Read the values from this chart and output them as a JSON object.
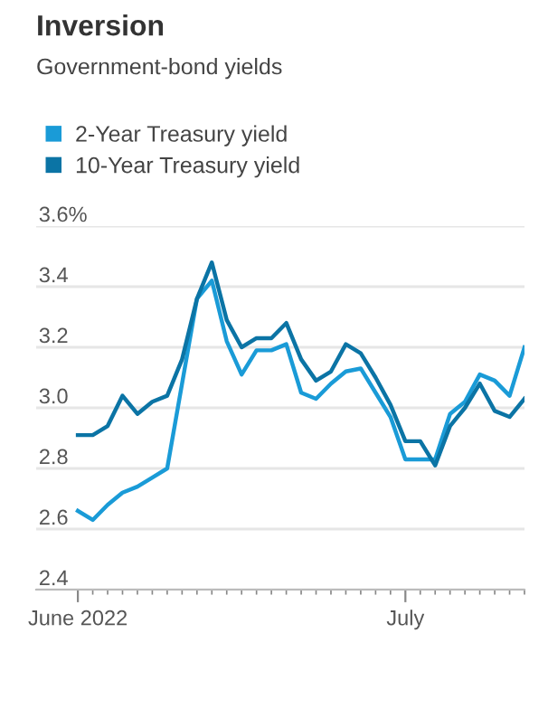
{
  "chart_data": {
    "type": "line",
    "title": "Inversion",
    "subtitle": "Government-bond yields",
    "categories": [
      "June 2022",
      null,
      null,
      null,
      null,
      null,
      null,
      null,
      null,
      null,
      null,
      null,
      null,
      null,
      null,
      null,
      null,
      null,
      null,
      null,
      null,
      null,
      "July",
      null,
      null,
      null,
      null,
      null,
      null,
      null,
      null
    ],
    "series": [
      {
        "name": "2-Year Treasury yield",
        "color": "#1a9bd7",
        "values": [
          2.66,
          2.63,
          2.68,
          2.72,
          2.74,
          2.77,
          2.8,
          3.08,
          3.36,
          3.42,
          3.22,
          3.11,
          3.19,
          3.19,
          3.21,
          3.05,
          3.03,
          3.08,
          3.12,
          3.13,
          3.05,
          2.97,
          2.83,
          2.83,
          2.83,
          2.98,
          3.02,
          3.11,
          3.09,
          3.04,
          3.2
        ]
      },
      {
        "name": "10-Year Treasury yield",
        "color": "#0b74a5",
        "values": [
          2.91,
          2.91,
          2.94,
          3.04,
          2.98,
          3.02,
          3.04,
          3.16,
          3.36,
          3.48,
          3.29,
          3.2,
          3.23,
          3.23,
          3.28,
          3.16,
          3.09,
          3.12,
          3.21,
          3.18,
          3.1,
          3.01,
          2.89,
          2.89,
          2.81,
          2.94,
          3.0,
          3.08,
          2.99,
          2.97,
          3.03
        ]
      }
    ],
    "ylim": [
      2.4,
      3.6
    ],
    "yticks": [
      2.4,
      2.6,
      2.8,
      {
        "value": 3.0,
        "label": "3.0"
      },
      3.2,
      3.4,
      {
        "value": 3.6,
        "label": "3.6%"
      }
    ],
    "grid": "y",
    "legend": "top",
    "marker": "none",
    "line_style": "solid"
  }
}
